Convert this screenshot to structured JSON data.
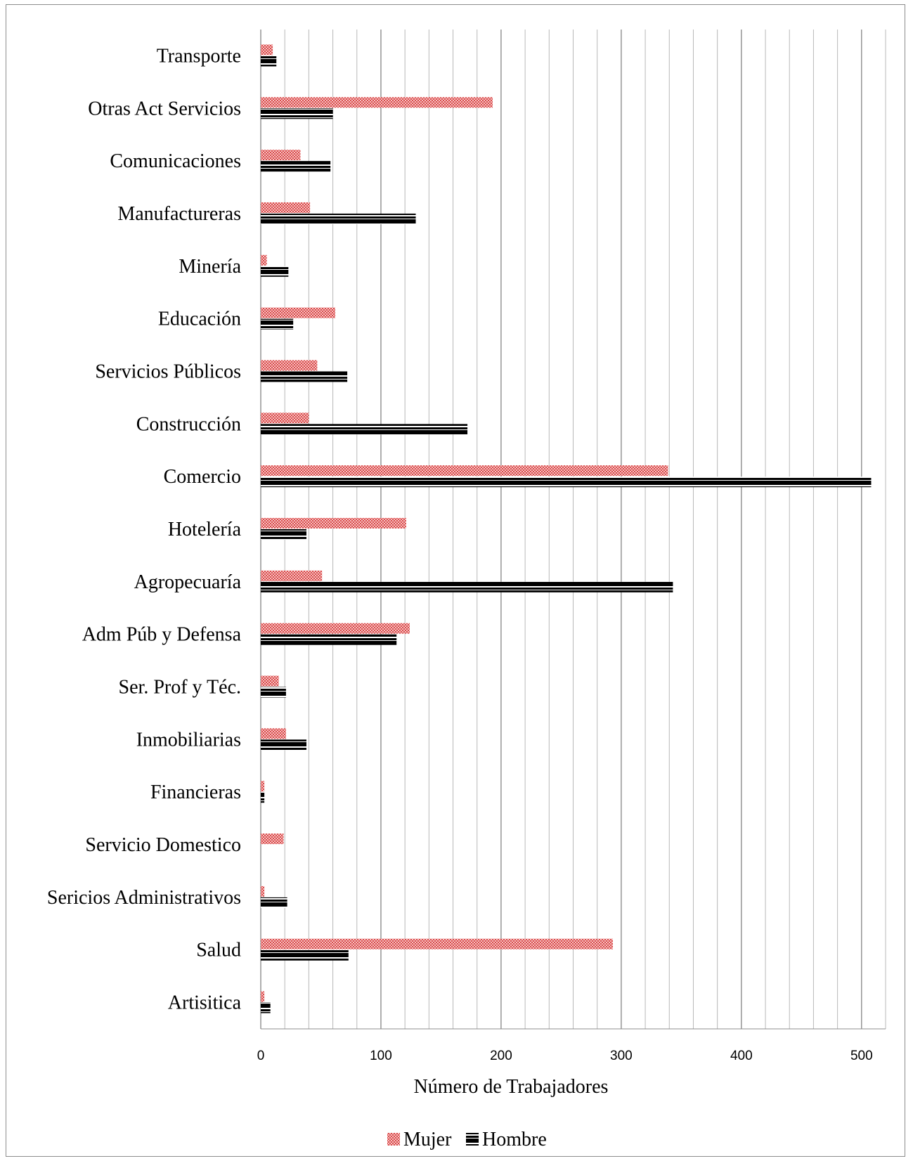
{
  "chart_data": {
    "type": "bar",
    "orientation": "horizontal",
    "categories": [
      "Transporte",
      "Otras Act Servicios",
      "Comunicaciones",
      "Manufactureras",
      "Minería",
      "Educación",
      "Servicios Públicos",
      "Construcción",
      "Comercio",
      "Hotelería",
      "Agropecuaría",
      "Adm Púb y Defensa",
      "Ser. Prof y Téc.",
      "Inmobiliarias",
      "Financieras",
      "Servicio Domestico",
      "Sericios Administrativos",
      "Salud",
      "Artisitica"
    ],
    "series": [
      {
        "name": "Mujer",
        "values": [
          10,
          193,
          33,
          41,
          5,
          62,
          47,
          40,
          339,
          121,
          51,
          124,
          15,
          21,
          3,
          19,
          3,
          293,
          3
        ]
      },
      {
        "name": "Hombre",
        "values": [
          13,
          60,
          58,
          129,
          23,
          27,
          72,
          172,
          508,
          38,
          343,
          113,
          21,
          38,
          3,
          0,
          22,
          73,
          8
        ]
      }
    ],
    "xlabel": "Número de Trabajadores",
    "ylabel": "",
    "xlim": [
      0,
      520
    ],
    "xticks": [
      0,
      100,
      200,
      300,
      400,
      500
    ],
    "grid": true,
    "legend_position": "bottom",
    "colors": {
      "Mujer": "#e05a5a",
      "Hombre": "#000000"
    }
  }
}
